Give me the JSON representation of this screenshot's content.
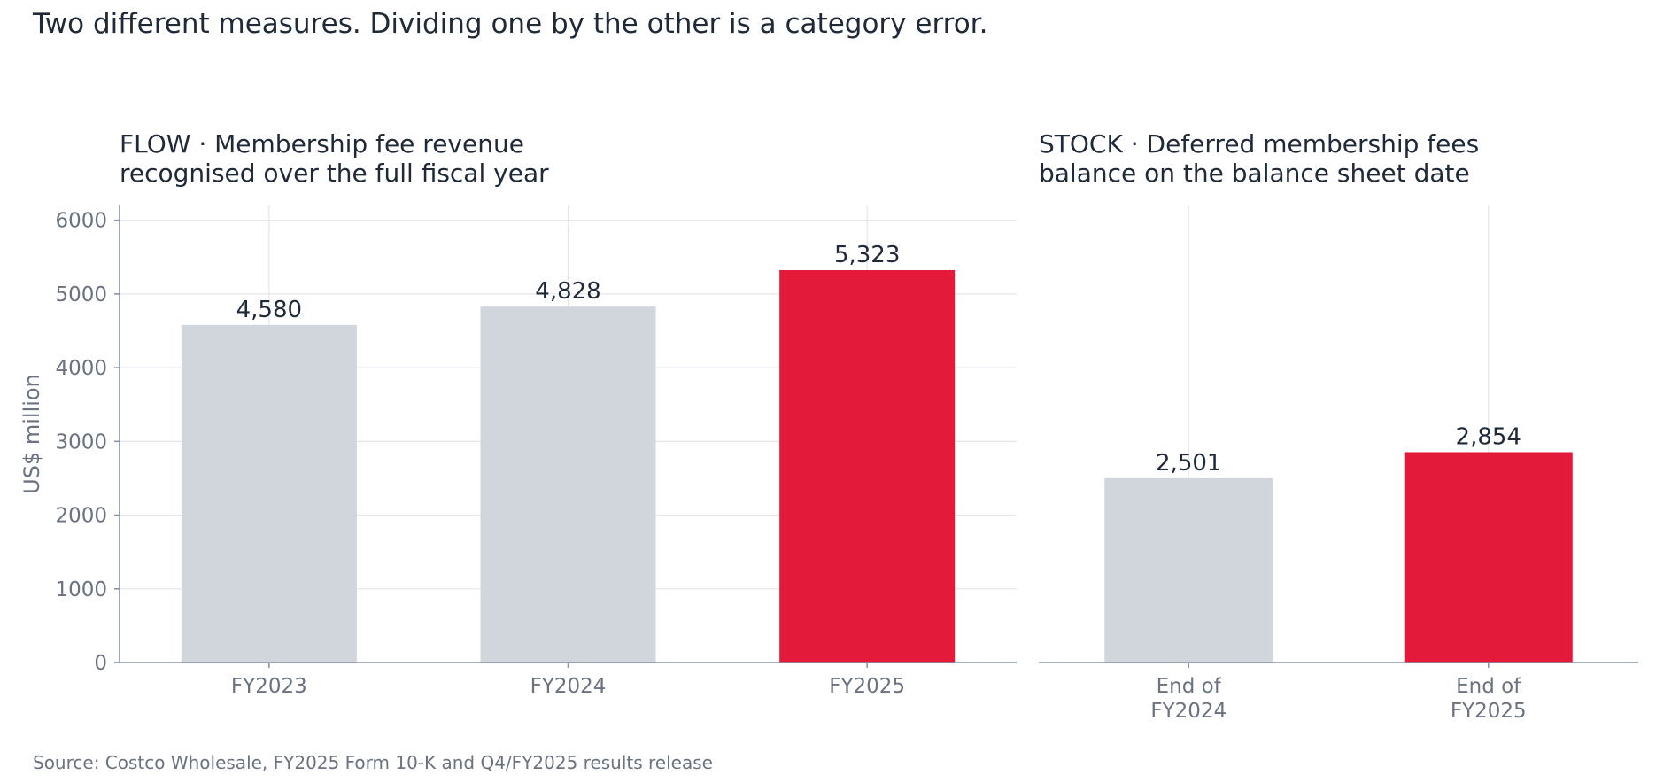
{
  "title": "Two different measures. Dividing one by the other is a category error.",
  "source": "Source: Costco Wholesale, FY2025 Form 10-K and Q4/FY2025 results release",
  "colors": {
    "muted": "#d1d5dc",
    "highlight": "#e31a3a",
    "text": "#1f2937",
    "subtle": "#6b7280"
  },
  "chart_data": [
    {
      "type": "bar",
      "title_lines": [
        "FLOW  ·  Membership fee revenue",
        "recognised over the full fiscal year"
      ],
      "ylabel": "US$ million",
      "ylim": [
        0,
        6200
      ],
      "yticks": [
        0,
        1000,
        2000,
        3000,
        4000,
        5000,
        6000
      ],
      "grid": true,
      "categories": [
        [
          "FY2023"
        ],
        [
          "FY2024"
        ],
        [
          "FY2025"
        ]
      ],
      "values": [
        4580,
        4828,
        5323
      ],
      "value_labels": [
        "4,580",
        "4,828",
        "5,323"
      ],
      "highlight_index": 2
    },
    {
      "type": "bar",
      "title_lines": [
        "STOCK  ·  Deferred membership fees",
        "balance on the balance sheet date"
      ],
      "ylabel": "",
      "ylim": [
        0,
        6200
      ],
      "yticks": [],
      "grid": true,
      "categories": [
        [
          "End of",
          "FY2024"
        ],
        [
          "End of",
          "FY2025"
        ]
      ],
      "values": [
        2501,
        2854
      ],
      "value_labels": [
        "2,501",
        "2,854"
      ],
      "highlight_index": 1
    }
  ]
}
